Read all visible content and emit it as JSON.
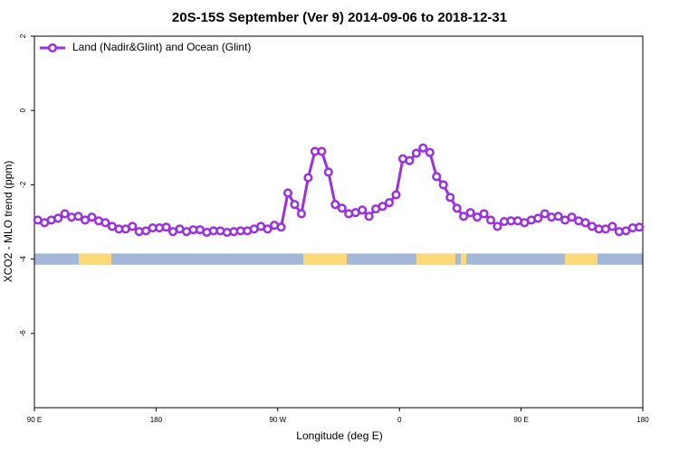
{
  "chart_data": {
    "type": "line",
    "title": "20S-15S September (Ver 9)   2014-09-06 to 2018-12-31",
    "x_label": "Longitude (deg E)",
    "y_label": "XCO2 - MLO trend (ppm)",
    "xlim": [
      90,
      540
    ],
    "ylim": [
      -8,
      2
    ],
    "xticks": [
      {
        "value": 90,
        "label": "90 E"
      },
      180,
      {
        "value": 270,
        "label": "90 W"
      },
      {
        "value": 360,
        "label": "0"
      },
      {
        "value": 450,
        "label": "90 E"
      },
      {
        "value": 540,
        "label": "180"
      }
    ],
    "yticks": [
      2,
      0,
      -2,
      -4,
      -6
    ],
    "legend_position": "top-left",
    "series": [
      {
        "name": "Land (Nadir&Glint) and Ocean (Glint)",
        "color": "#9b30e0",
        "x": [
          92.5,
          97.5,
          102.5,
          107.5,
          112.5,
          117.5,
          122.5,
          127.5,
          132.5,
          137.5,
          142.5,
          147.5,
          152.5,
          157.5,
          162.5,
          167.5,
          172.5,
          177.5,
          182.5,
          187.5,
          192.5,
          197.5,
          202.5,
          207.5,
          212.5,
          217.5,
          222.5,
          227.5,
          232.5,
          237.5,
          242.5,
          247.5,
          252.5,
          257.5,
          262.5,
          267.5,
          272.5,
          277.5,
          282.5,
          287.5,
          292.5,
          297.5,
          302.5,
          307.5,
          312.5,
          317.5,
          322.5,
          327.5,
          332.5,
          337.5,
          342.5,
          347.5,
          352.5,
          357.5,
          362.5,
          367.5,
          372.5,
          377.5,
          382.5,
          387.5,
          392.5,
          397.5,
          402.5,
          407.5,
          412.5,
          417.5,
          422.5,
          427.5,
          432.5,
          437.5,
          442.5,
          447.5,
          452.5,
          457.5,
          462.5,
          467.5,
          472.5,
          477.5,
          482.5,
          487.5,
          492.5,
          497.5,
          502.5,
          507.5,
          512.5,
          517.5,
          522.5,
          527.5,
          532.5,
          537.5
        ],
        "values": [
          -2.95,
          -3.02,
          -2.95,
          -2.9,
          -2.78,
          -2.87,
          -2.85,
          -2.95,
          -2.87,
          -2.97,
          -3.02,
          -3.12,
          -3.19,
          -3.19,
          -3.12,
          -3.26,
          -3.24,
          -3.16,
          -3.16,
          -3.14,
          -3.26,
          -3.19,
          -3.26,
          -3.21,
          -3.21,
          -3.28,
          -3.24,
          -3.24,
          -3.28,
          -3.26,
          -3.24,
          -3.24,
          -3.19,
          -3.12,
          -3.19,
          -3.09,
          -3.14,
          -2.22,
          -2.53,
          -2.78,
          -1.81,
          -1.1,
          -1.1,
          -1.66,
          -2.53,
          -2.63,
          -2.78,
          -2.75,
          -2.68,
          -2.85,
          -2.65,
          -2.58,
          -2.48,
          -2.27,
          -1.3,
          -1.35,
          -1.15,
          -1.01,
          -1.13,
          -1.78,
          -2.0,
          -2.34,
          -2.63,
          -2.85,
          -2.75,
          -2.87,
          -2.78,
          -2.95,
          -3.12,
          -2.99,
          -2.97,
          -2.97,
          -3.02,
          -2.95,
          -2.9,
          -2.78,
          -2.87,
          -2.85,
          -2.95,
          -2.87,
          -2.97,
          -3.02,
          -3.12,
          -3.19,
          -3.19,
          -3.12,
          -3.26,
          -3.24,
          -3.16,
          -3.14
        ]
      }
    ],
    "surface_strip": {
      "ylim": [
        -4.15,
        -3.85
      ],
      "ocean_color": "#a3b8d9",
      "land_color": "#ffd878",
      "land": [
        [
          122.8,
          146.9
        ],
        [
          288.9,
          321
        ],
        [
          372.6,
          401.4
        ],
        [
          405.4,
          409.4
        ],
        [
          482.4,
          506.5
        ]
      ]
    }
  }
}
